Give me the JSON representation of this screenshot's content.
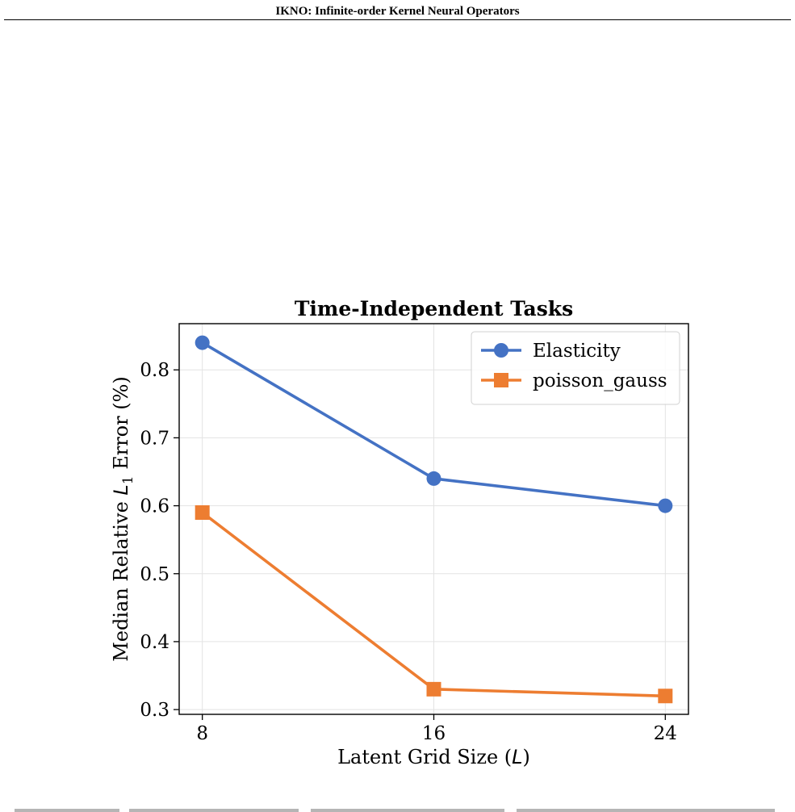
{
  "header": {
    "running_title": "IKNO: Infinite-order Kernel Neural Operators"
  },
  "chart_data": {
    "type": "line",
    "title": "Time-Independent Tasks",
    "xlabel": "Latent Grid Size (L)",
    "ylabel": "Median Relative L1 Error (%)",
    "x": [
      8,
      16,
      24
    ],
    "x_ticks": [
      "8",
      "16",
      "24"
    ],
    "y_ticks": [
      "0.3",
      "0.4",
      "0.5",
      "0.6",
      "0.7",
      "0.8"
    ],
    "xlim": [
      7.2,
      24.8
    ],
    "ylim": [
      0.293,
      0.868
    ],
    "grid": true,
    "legend_position": "top-right",
    "series": [
      {
        "name": "Elasticity",
        "values": [
          0.84,
          0.64,
          0.6
        ],
        "color": "#4472c4",
        "marker": "circle"
      },
      {
        "name": "poisson_gauss",
        "values": [
          0.59,
          0.33,
          0.32
        ],
        "color": "#ed7d31",
        "marker": "square"
      }
    ]
  }
}
